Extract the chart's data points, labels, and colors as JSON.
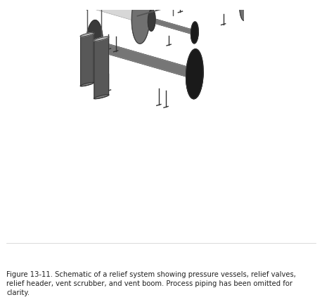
{
  "figsize": [
    4.58,
    4.31
  ],
  "dpi": 100,
  "bg_color": "#ffffff",
  "caption": "Figure 13-11. Schematic of a relief system showing pressure vessels, relief valves,\nrelief header, vent scrubber, and vent boom. Process piping has been omitted for\nclarity.",
  "caption_fontsize": 7.2,
  "pipe_color": "#555555",
  "pipe_lw": 1.3,
  "edge_color": "#333333",
  "vessel_silver_body": "#b0b0b0",
  "vessel_silver_end": "#707070",
  "vessel_silver_top": "#e8e8e8",
  "vessel_dark_body": "#3a3a3a",
  "vessel_dark_end": "#1a1a1a",
  "vessel_dark_top": "#909090",
  "vessel_mid_body": "#808080",
  "vessel_mid_end": "#505050",
  "vessel_mid_top": "#c0c0c0"
}
